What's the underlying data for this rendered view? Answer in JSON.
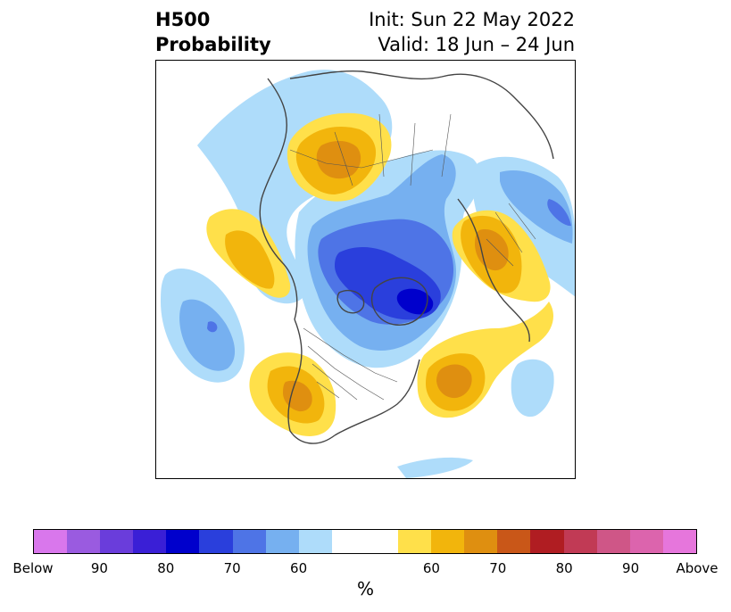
{
  "header": {
    "title_line1": "H500",
    "title_line2": "Probability",
    "init_text": "Init: Sun 22 May 2022",
    "valid_text": "Valid: 18 Jun – 24 Jun"
  },
  "colorbar": {
    "colors": [
      "#d977ec",
      "#9a5be0",
      "#6a3ddb",
      "#3a1fd6",
      "#0000cc",
      "#2a3fdc",
      "#4e74e6",
      "#76b0f0",
      "#aedcfa",
      "#ffffff",
      "#ffffff",
      "#ffe04a",
      "#f2b50c",
      "#df8f10",
      "#c95718",
      "#b01d22",
      "#c13a55",
      "#cf5687",
      "#dc64ad",
      "#e676dc"
    ],
    "tick_labels": [
      "Below",
      "90",
      "80",
      "70",
      "60",
      "60",
      "70",
      "80",
      "90",
      "Above"
    ],
    "unit_label": "%"
  }
}
